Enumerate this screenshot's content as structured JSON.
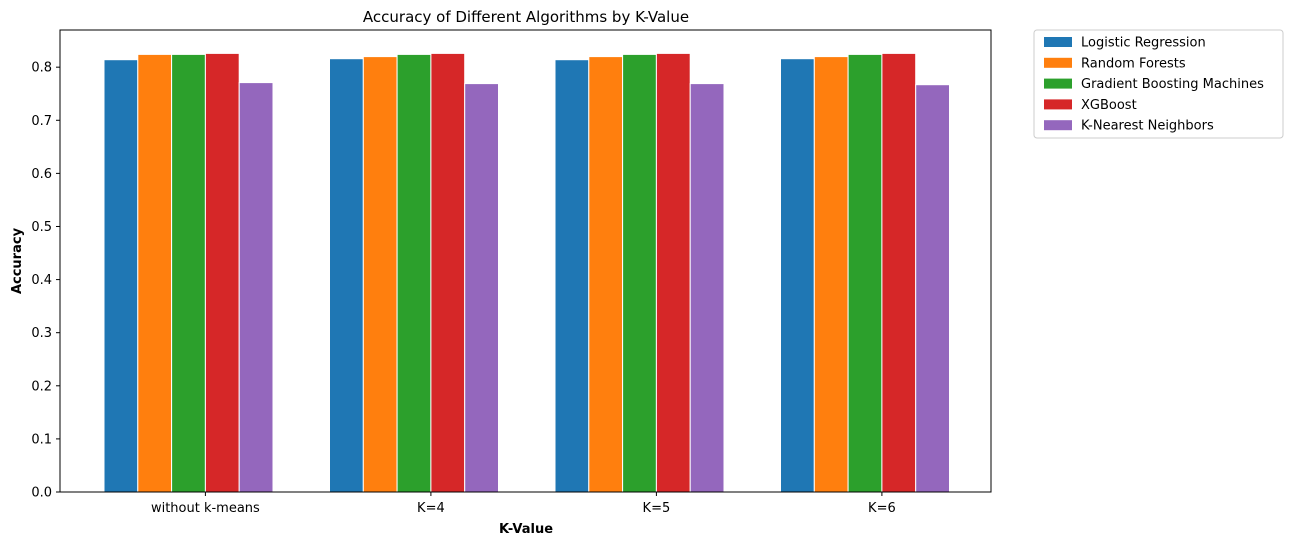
{
  "chart_data": {
    "type": "bar",
    "title": "Accuracy of Different Algorithms by K-Value",
    "xlabel": "K-Value",
    "ylabel": "Accuracy",
    "ylim": [
      0,
      0.87
    ],
    "yticks": [
      "0.0",
      "0.1",
      "0.2",
      "0.3",
      "0.4",
      "0.5",
      "0.6",
      "0.7",
      "0.8"
    ],
    "categories": [
      "without k-means",
      "K=4",
      "K=5",
      "K=6"
    ],
    "legend_position": "outside-top-right",
    "grid": false,
    "series": [
      {
        "name": "Logistic Regression",
        "color": "#1f77b4",
        "values": [
          0.814,
          0.816,
          0.814,
          0.816
        ]
      },
      {
        "name": "Random Forests",
        "color": "#ff7f0e",
        "values": [
          0.824,
          0.82,
          0.82,
          0.82
        ]
      },
      {
        "name": "Gradient Boosting Machines",
        "color": "#2ca02c",
        "values": [
          0.824,
          0.824,
          0.824,
          0.824
        ]
      },
      {
        "name": "XGBoost",
        "color": "#d62728",
        "values": [
          0.826,
          0.826,
          0.826,
          0.826
        ]
      },
      {
        "name": "K-Nearest Neighbors",
        "color": "#9467bd",
        "values": [
          0.771,
          0.769,
          0.769,
          0.767
        ]
      }
    ]
  }
}
